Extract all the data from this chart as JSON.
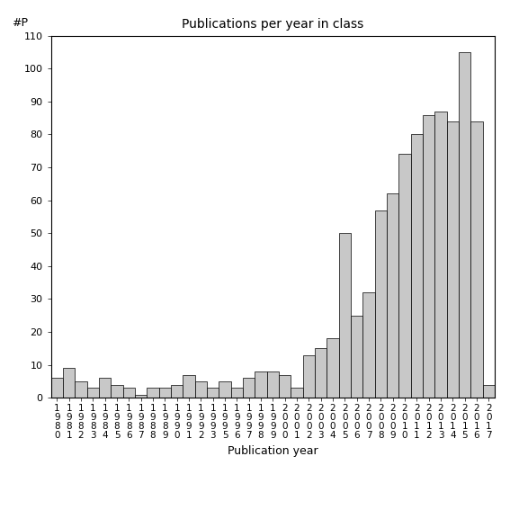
{
  "title": "Publications per year in class",
  "xlabel": "Publication year",
  "ylabel": "#P",
  "bar_color": "#c8c8c8",
  "bar_edge_color": "#000000",
  "ylim": [
    0,
    110
  ],
  "yticks": [
    0,
    10,
    20,
    30,
    40,
    50,
    60,
    70,
    80,
    90,
    100,
    110
  ],
  "background_color": "#ffffff",
  "years": [
    "1980",
    "1981",
    "1982",
    "1983",
    "1984",
    "1985",
    "1986",
    "1987",
    "1988",
    "1989",
    "1990",
    "1991",
    "1992",
    "1993",
    "1995",
    "1996",
    "1997",
    "1998",
    "1999",
    "2000",
    "2001",
    "2002",
    "2003",
    "2004",
    "2005",
    "2006",
    "2007",
    "2008",
    "2009",
    "2010",
    "2011",
    "2012",
    "2013",
    "2014",
    "2015",
    "2016",
    "2017"
  ],
  "values": [
    6,
    9,
    5,
    3,
    6,
    4,
    3,
    1,
    3,
    3,
    4,
    7,
    5,
    3,
    5,
    3,
    6,
    8,
    8,
    7,
    3,
    13,
    15,
    18,
    50,
    25,
    32,
    57,
    62,
    74,
    80,
    86,
    87,
    84,
    105,
    84,
    4
  ],
  "title_fontsize": 10,
  "axis_label_fontsize": 9,
  "tick_label_fontsize": 7.5,
  "ytick_fontsize": 8
}
